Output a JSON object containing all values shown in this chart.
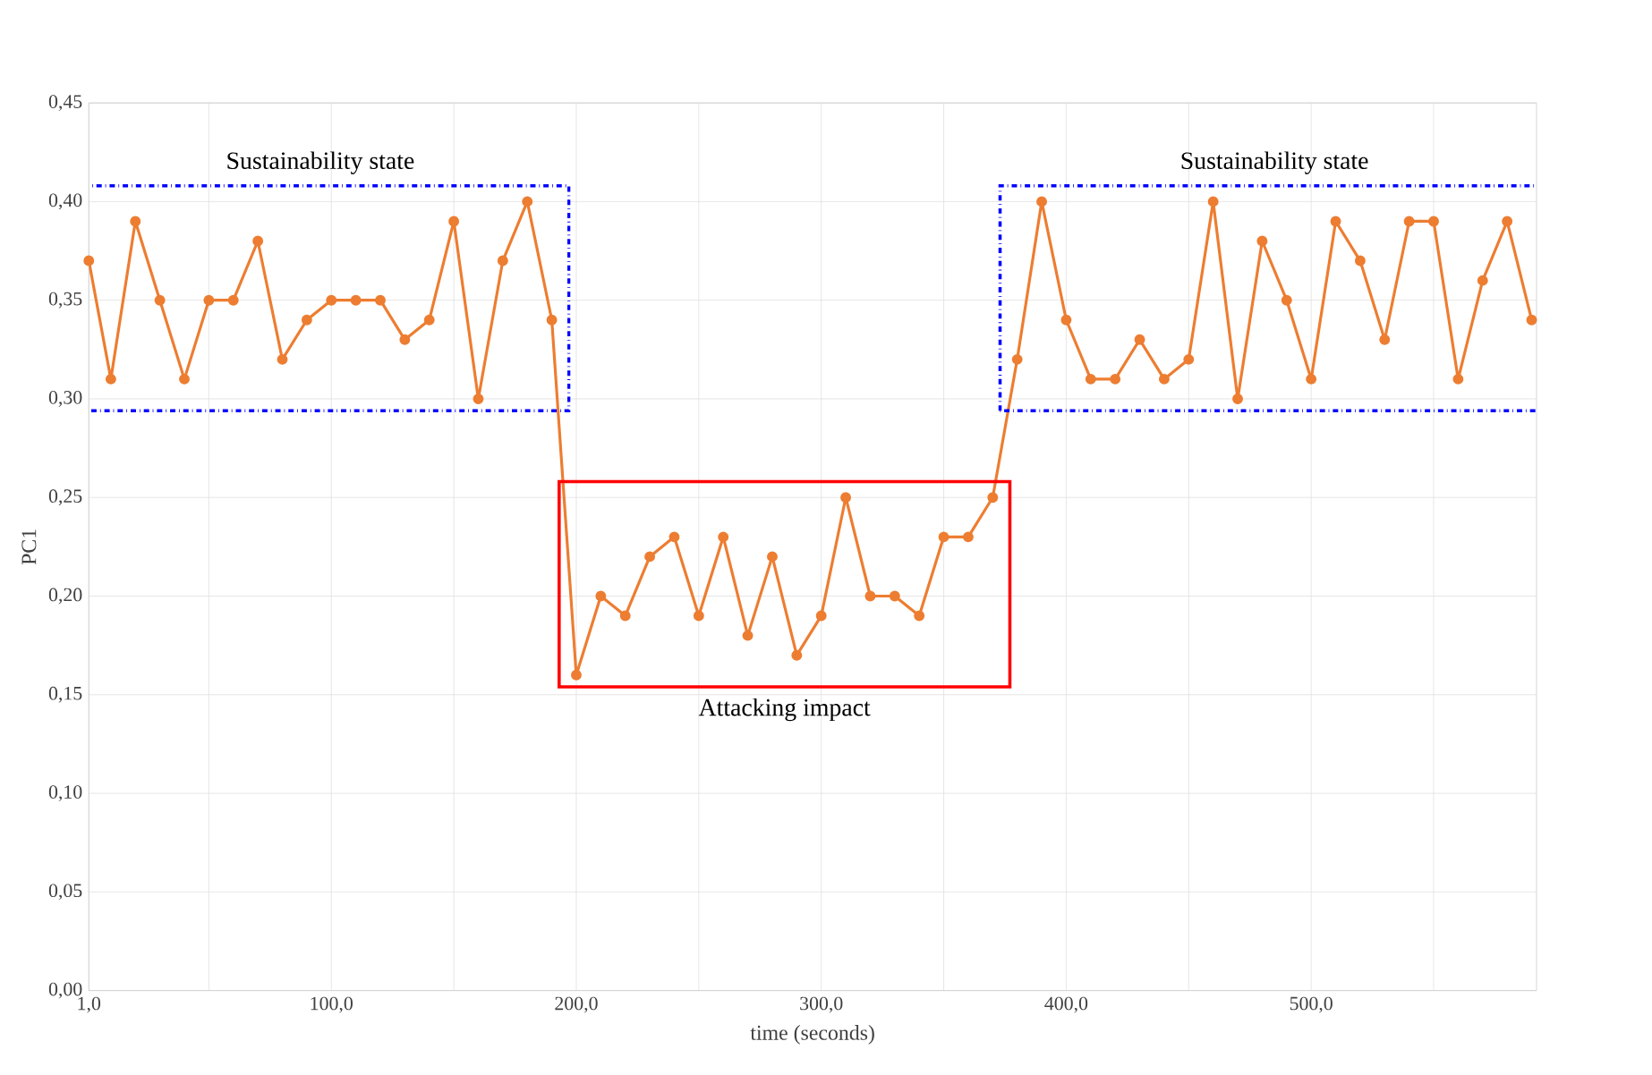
{
  "chart_data": {
    "type": "line",
    "xlabel": "time (seconds)",
    "ylabel": "PC1",
    "x": [
      1,
      10,
      20,
      30,
      40,
      50,
      60,
      70,
      80,
      90,
      100,
      110,
      120,
      130,
      140,
      150,
      160,
      170,
      180,
      190,
      200,
      210,
      220,
      230,
      240,
      250,
      260,
      270,
      280,
      290,
      300,
      310,
      320,
      330,
      340,
      350,
      360,
      370,
      380,
      390,
      400,
      410,
      420,
      430,
      440,
      450,
      460,
      470,
      480,
      490,
      500,
      510,
      520,
      530,
      540,
      550,
      560,
      570,
      580,
      590
    ],
    "series": [
      {
        "color": "#ed7d31",
        "values": [
          0.37,
          0.31,
          0.39,
          0.35,
          0.31,
          0.35,
          0.35,
          0.38,
          0.32,
          0.34,
          0.35,
          0.35,
          0.35,
          0.33,
          0.34,
          0.39,
          0.3,
          0.37,
          0.4,
          0.34,
          0.16,
          0.2,
          0.19,
          0.22,
          0.23,
          0.19,
          0.23,
          0.18,
          0.22,
          0.17,
          0.19,
          0.25,
          0.2,
          0.2,
          0.19,
          0.23,
          0.23,
          0.25,
          0.32,
          0.4,
          0.34,
          0.31,
          0.31,
          0.33,
          0.31,
          0.32,
          0.4,
          0.3,
          0.38,
          0.35,
          0.31,
          0.39,
          0.37,
          0.33,
          0.39,
          0.39,
          0.31,
          0.36,
          0.39,
          0.34
        ]
      }
    ],
    "xlim": [
      1,
      592
    ],
    "ylim": [
      0,
      0.45
    ],
    "xticks": [
      {
        "value": 1,
        "label": "1,0"
      },
      {
        "value": 50,
        "label": null
      },
      {
        "value": 100,
        "label": "100,0"
      },
      {
        "value": 150,
        "label": null
      },
      {
        "value": 200,
        "label": "200,0"
      },
      {
        "value": 250,
        "label": null
      },
      {
        "value": 300,
        "label": "300,0"
      },
      {
        "value": 350,
        "label": null
      },
      {
        "value": 400,
        "label": "400,0"
      },
      {
        "value": 450,
        "label": null
      },
      {
        "value": 500,
        "label": "500,0"
      },
      {
        "value": 550,
        "label": null
      }
    ],
    "yticks": [
      {
        "value": 0,
        "label": "0,00"
      },
      {
        "value": 0.05,
        "label": "0,05"
      },
      {
        "value": 0.1,
        "label": "0,10"
      },
      {
        "value": 0.15,
        "label": "0,15"
      },
      {
        "value": 0.2,
        "label": "0,20"
      },
      {
        "value": 0.25,
        "label": "0,25"
      },
      {
        "value": 0.3,
        "label": "0,30"
      },
      {
        "value": 0.35,
        "label": "0,35"
      },
      {
        "value": 0.4,
        "label": "0,40"
      },
      {
        "value": 0.45,
        "label": "0,45"
      }
    ],
    "grid": true,
    "marker": "circle",
    "line_style": "solid",
    "annotations": [
      "Sustainability state",
      "Attacking impact",
      "Sustainability state"
    ]
  }
}
